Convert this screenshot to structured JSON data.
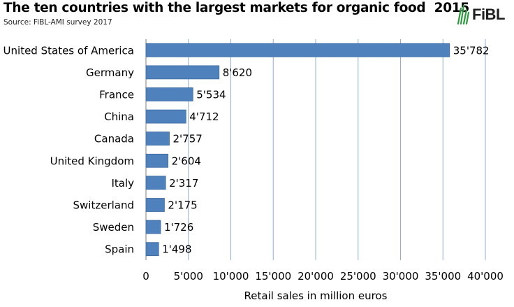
{
  "title": "The ten countries with the largest markets for organic food  2015",
  "source": "Source: FiBL-AMI survey 2017",
  "logo": {
    "text": "FiBL",
    "icon": "fibl-leaf-icon",
    "color": "#2e9b3f"
  },
  "colors": {
    "bar": "#4f81bd",
    "bar_border": "#3b6aa0",
    "grid": "#8eb0d6"
  },
  "chart_data": {
    "type": "bar",
    "orientation": "horizontal",
    "categories": [
      "United States of America",
      "Germany",
      "France",
      "China",
      "Canada",
      "United Kingdom",
      "Italy",
      "Switzerland",
      "Sweden",
      "Spain"
    ],
    "values": [
      35782,
      8620,
      5534,
      4712,
      2757,
      2604,
      2317,
      2175,
      1726,
      1498
    ],
    "value_labels": [
      "35'782",
      "8'620",
      "5'534",
      "4'712",
      "2'757",
      "2'604",
      "2'317",
      "2'175",
      "1'726",
      "1'498"
    ],
    "xticks": [
      0,
      5000,
      10000,
      15000,
      20000,
      25000,
      30000,
      35000,
      40000
    ],
    "xtick_labels": [
      "0",
      "5'000",
      "10'000",
      "15'000",
      "20'000",
      "25'000",
      "30'000",
      "35'000",
      "40'000"
    ],
    "xlim": [
      0,
      40000
    ],
    "xlabel": "Retail sales in million euros",
    "ylabel": "",
    "grid": "vertical",
    "legend": "none"
  }
}
